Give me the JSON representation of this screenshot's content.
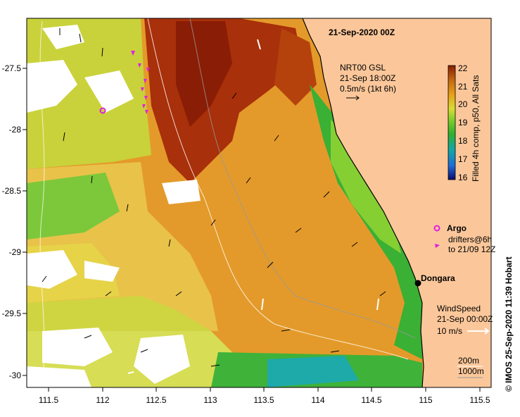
{
  "title": "21-Sep-2020 00Z",
  "x_ticks": [
    "111.5",
    "112",
    "112.5",
    "113",
    "113.5",
    "114",
    "114.5",
    "115",
    "115.5"
  ],
  "y_ticks": [
    "-27.5",
    "-28",
    "-28.5",
    "-29",
    "-29.5",
    "-30"
  ],
  "colorbar": {
    "label": "Filled 4h comp, p50, All Sats",
    "ticks": [
      "22",
      "21",
      "20",
      "19",
      "18",
      "17",
      "16"
    ],
    "colors": [
      "#0a0a6e",
      "#1f6bd6",
      "#12a7a8",
      "#2fb030",
      "#7ccd2c",
      "#d8dc33",
      "#e8a21a",
      "#c46a10",
      "#8a1d05"
    ]
  },
  "current_legend": {
    "source": "NRT00 GSL",
    "time": "21-Sep 18:00Z",
    "scale": "0.5m/s (1kt 6h)"
  },
  "argo_legend": {
    "argo_label": "Argo",
    "drifters_line1": "drifters@6h",
    "drifters_line2": "to 21/09 12Z"
  },
  "place_label": "Dongara",
  "wind_legend": {
    "label": "WindSpeed",
    "time": "21-Sep 00:00Z",
    "scale": "10 m/s"
  },
  "depth_legend": {
    "line1": "200m",
    "line2": "1000m"
  },
  "credit": "© IMOS 25-Sep-2020 11:39 Hobart",
  "colors": {
    "land": "#fbc79a",
    "argo": "#e020e0",
    "coast": "#000000"
  }
}
